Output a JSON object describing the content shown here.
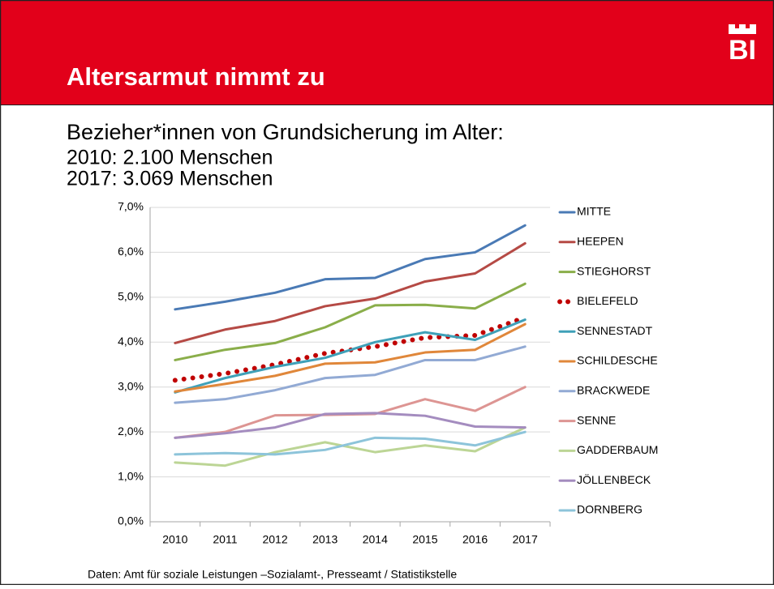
{
  "header": {
    "title": "Altersarmut nimmt zu",
    "logo": "BI"
  },
  "intro": [
    "Bezieher*innen von Grundsicherung im Alter:",
    "2010: 2.100 Menschen",
    "2017: 3.069 Menschen"
  ],
  "footer": "Daten: Amt für soziale Leistungen –Sozialamt-, Presseamt / Statistikstelle",
  "chart_data": {
    "type": "line",
    "categories": [
      "2010",
      "2011",
      "2012",
      "2013",
      "2014",
      "2015",
      "2016",
      "2017"
    ],
    "ylim": [
      0,
      7
    ],
    "yticks": [
      {
        "value": 0,
        "label": "0,0%"
      },
      {
        "value": 1,
        "label": "1,0%"
      },
      {
        "value": 2,
        "label": "2,0%"
      },
      {
        "value": 3,
        "label": "3,0%"
      },
      {
        "value": 4,
        "label": "4,0%"
      },
      {
        "value": 5,
        "label": "5,0%"
      },
      {
        "value": 6,
        "label": "6,0%"
      },
      {
        "value": 7,
        "label": "7,0%"
      }
    ],
    "grid": true,
    "legend": "right",
    "series": [
      {
        "name": "MITTE",
        "color": "#4a7ab5",
        "values": [
          4.73,
          4.9,
          5.1,
          5.4,
          5.43,
          5.85,
          6.0,
          6.6
        ]
      },
      {
        "name": "HEEPEN",
        "color": "#b54a45",
        "values": [
          3.98,
          4.28,
          4.47,
          4.8,
          4.97,
          5.35,
          5.53,
          6.2
        ]
      },
      {
        "name": "STIEGHORST",
        "color": "#8aae4a",
        "values": [
          3.6,
          3.83,
          3.98,
          4.33,
          4.82,
          4.83,
          4.75,
          5.3
        ]
      },
      {
        "name": "BIELEFELD",
        "color": "#c00000",
        "style": "dotted",
        "values": [
          3.15,
          3.3,
          3.5,
          3.75,
          3.9,
          4.1,
          4.15,
          4.55
        ]
      },
      {
        "name": "SENNESTADT",
        "color": "#3fa0b8",
        "values": [
          2.88,
          3.2,
          3.45,
          3.65,
          4.0,
          4.22,
          4.05,
          4.5
        ]
      },
      {
        "name": "SCHILDESCHE",
        "color": "#e0873a",
        "values": [
          2.9,
          3.07,
          3.25,
          3.52,
          3.55,
          3.77,
          3.83,
          4.4
        ]
      },
      {
        "name": "BRACKWEDE",
        "color": "#92aad4",
        "values": [
          2.65,
          2.73,
          2.93,
          3.2,
          3.27,
          3.6,
          3.6,
          3.9
        ]
      },
      {
        "name": "SENNE",
        "color": "#dd9593",
        "values": [
          1.87,
          2.0,
          2.37,
          2.38,
          2.4,
          2.73,
          2.47,
          3.0
        ]
      },
      {
        "name": "GADDERBAUM",
        "color": "#bcd595",
        "values": [
          1.32,
          1.25,
          1.55,
          1.77,
          1.55,
          1.7,
          1.57,
          2.1
        ]
      },
      {
        "name": "JÖLLENBECK",
        "color": "#a48cbf",
        "values": [
          1.87,
          1.97,
          2.1,
          2.4,
          2.42,
          2.36,
          2.12,
          2.1
        ]
      },
      {
        "name": "DORNBERG",
        "color": "#8dc4da",
        "values": [
          1.5,
          1.53,
          1.5,
          1.6,
          1.87,
          1.85,
          1.7,
          2.0
        ]
      }
    ]
  }
}
